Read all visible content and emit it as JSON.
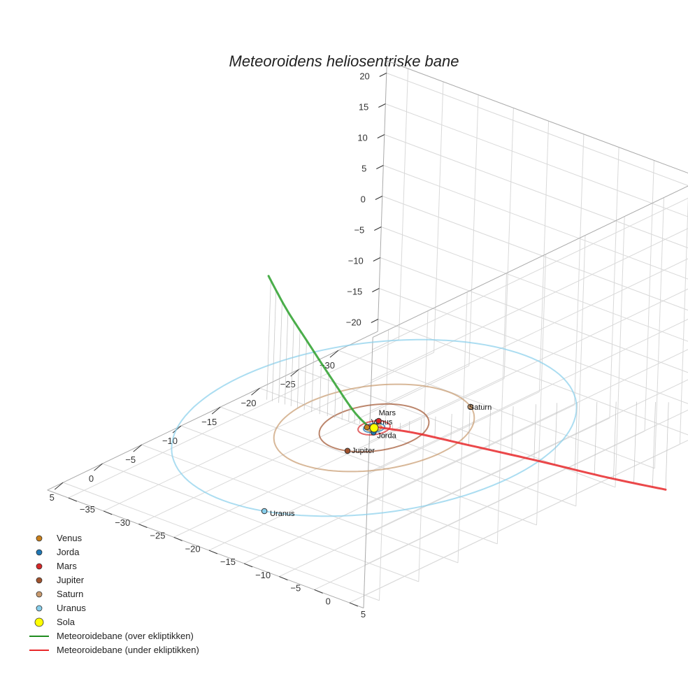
{
  "chart_data": {
    "type": "scatter3d",
    "title": "Meteoroidens heliosentriske bane",
    "axes": {
      "x": {
        "ticks": [
          -30,
          -25,
          -20,
          -15,
          -10,
          -5,
          0,
          5
        ]
      },
      "y": {
        "ticks": [
          -35,
          -30,
          -25,
          -20,
          -15,
          -10,
          -5,
          0,
          5
        ]
      },
      "z": {
        "ticks": [
          -20,
          -15,
          -10,
          -5,
          0,
          5,
          10,
          15,
          20
        ]
      }
    },
    "grid": true,
    "legend_position": "bottom-left",
    "planets": [
      {
        "name": "Venus",
        "color": "#c87f1b",
        "orbit_radius": 0.72,
        "position": [
          0.3,
          -0.68,
          0
        ]
      },
      {
        "name": "Jorda",
        "color": "#1f77b4",
        "orbit_radius": 1.0,
        "position": [
          0.7,
          0.7,
          0
        ]
      },
      {
        "name": "Mars",
        "color": "#d62728",
        "orbit_radius": 1.52,
        "position": [
          -1.3,
          -0.8,
          0
        ]
      },
      {
        "name": "Jupiter",
        "color": "#a0522d",
        "orbit_radius": 5.2,
        "position": [
          4.9,
          1.7,
          0
        ]
      },
      {
        "name": "Saturn",
        "color": "#c89a6e",
        "orbit_radius": 9.5,
        "position": [
          -8.5,
          4.2,
          0
        ]
      },
      {
        "name": "Uranus",
        "color": "#87ceeb",
        "orbit_radius": 19.2,
        "position": [
          18.5,
          5.1,
          0
        ]
      }
    ],
    "sun": {
      "name": "Sola",
      "color": "#ffff00",
      "position": [
        0,
        0,
        0
      ]
    },
    "trajectory": {
      "above": {
        "name": "Meteoroidebane (over ekliptikken)",
        "color": "#2ca02c",
        "points": [
          [
            0,
            -1,
            0
          ],
          [
            0.4,
            -2.6,
            2.0
          ],
          [
            0.8,
            -5.4,
            6.3
          ],
          [
            1.2,
            -8.6,
            11.3
          ],
          [
            1.5,
            -11.3,
            15.5
          ],
          [
            1.8,
            -13.6,
            20.0
          ]
        ]
      },
      "below": {
        "name": "Meteoroidebane (under ekliptikken)",
        "color": "#e8282a",
        "points": [
          [
            0,
            -1,
            0
          ],
          [
            -1.2,
            0.6,
            -0.6
          ],
          [
            -3.6,
            2.1,
            -2.2
          ],
          [
            -7.8,
            4.9,
            -5.5
          ],
          [
            -13,
            9.5,
            -9.4
          ],
          [
            -17,
            14.5,
            -12.3
          ],
          [
            -20.2,
            19.3,
            -14.2
          ]
        ]
      }
    },
    "legend": [
      {
        "name": "Venus",
        "color": "#c87f1b",
        "symbol": "marker"
      },
      {
        "name": "Jorda",
        "color": "#1f77b4",
        "symbol": "marker"
      },
      {
        "name": "Mars",
        "color": "#d62728",
        "symbol": "marker"
      },
      {
        "name": "Jupiter",
        "color": "#a0522d",
        "symbol": "marker"
      },
      {
        "name": "Saturn",
        "color": "#c89a6e",
        "symbol": "marker"
      },
      {
        "name": "Uranus",
        "color": "#87ceeb",
        "symbol": "marker"
      },
      {
        "name": "Sola",
        "color": "#ffff00",
        "symbol": "marker-large"
      },
      {
        "name": "Meteoroidebane (over ekliptikken)",
        "color": "#1f8c1f",
        "symbol": "line"
      },
      {
        "name": "Meteoroidebane (under ekliptikken)",
        "color": "#e8282a",
        "symbol": "line"
      }
    ]
  }
}
